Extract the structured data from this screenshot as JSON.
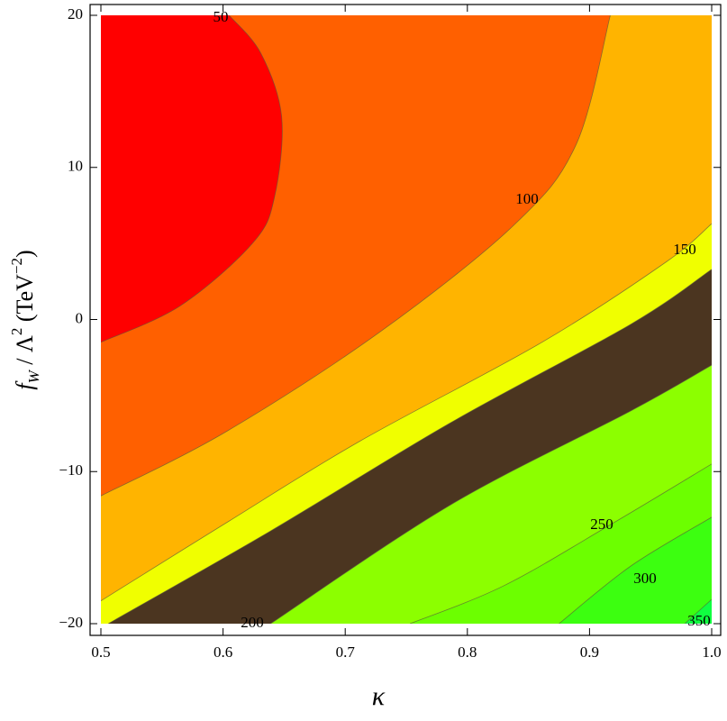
{
  "chart_data": {
    "type": "contour",
    "xlabel": "κ",
    "ylabel": [
      {
        "text": "f",
        "shift": "none"
      },
      {
        "text": "W",
        "shift": "sub"
      },
      {
        "text": " / Λ",
        "shift": "none"
      },
      {
        "text": "2",
        "shift": "super"
      },
      {
        "text": "  (TeV",
        "shift": "none"
      },
      {
        "text": "−2",
        "shift": "super"
      },
      {
        "text": ")",
        "shift": "none"
      }
    ],
    "xlim": [
      0.5,
      1.0
    ],
    "ylim": [
      -20,
      20
    ],
    "xticks": [
      0.5,
      0.6,
      0.7,
      0.8,
      0.9,
      1.0
    ],
    "yticks": [
      {
        "value": -20,
        "label": "−20"
      },
      {
        "value": -10,
        "label": "−10"
      },
      0,
      10,
      20
    ],
    "base_color": "#ff0000",
    "line_color": "#5a5a3a",
    "contours": [
      {
        "level": 50,
        "color": "#ff6000",
        "x": [
          0.605,
          0.631,
          0.648,
          0.642,
          0.624,
          0.565,
          0.5
        ],
        "y": [
          20,
          17.5,
          13.3,
          8.0,
          5.0,
          0.9,
          -1.5
        ]
      },
      {
        "level": 100,
        "color": "#ffb400",
        "x": [
          0.917,
          0.889,
          0.838,
          0.727,
          0.602,
          0.5
        ],
        "y": [
          20,
          11.5,
          6.2,
          -0.9,
          -7.4,
          -11.6
        ]
      },
      {
        "level": 150,
        "color": "#f0ff00",
        "x": [
          1.0,
          0.963,
          0.861,
          0.712,
          0.602,
          0.5
        ],
        "y": [
          6.3,
          3.8,
          -1.5,
          -8.0,
          -13.4,
          -18.5
        ]
      },
      {
        "level": null,
        "color": "#4b3520",
        "x": [
          1.0,
          0.934,
          0.786,
          0.639,
          0.506
        ],
        "y": [
          3.3,
          -0.3,
          -6.8,
          -13.9,
          -20
        ]
      },
      {
        "level": 200,
        "color": "#8cff00",
        "x": [
          1.0,
          0.934,
          0.786,
          0.639
        ],
        "y": [
          -3.0,
          -6.0,
          -12.2,
          -20
        ]
      },
      {
        "level": 250,
        "color": "#6cff00",
        "x": [
          1.0,
          0.919,
          0.83,
          0.753
        ],
        "y": [
          -9.5,
          -13.4,
          -17.5,
          -20
        ]
      },
      {
        "level": 300,
        "color": "#3cff10",
        "x": [
          1.0,
          0.934,
          0.875
        ],
        "y": [
          -13.0,
          -16.2,
          -20
        ]
      },
      {
        "level": 350,
        "color": "#10ff40",
        "x": [
          1.0,
          0.978
        ],
        "y": [
          -18.4,
          -20
        ]
      }
    ]
  }
}
